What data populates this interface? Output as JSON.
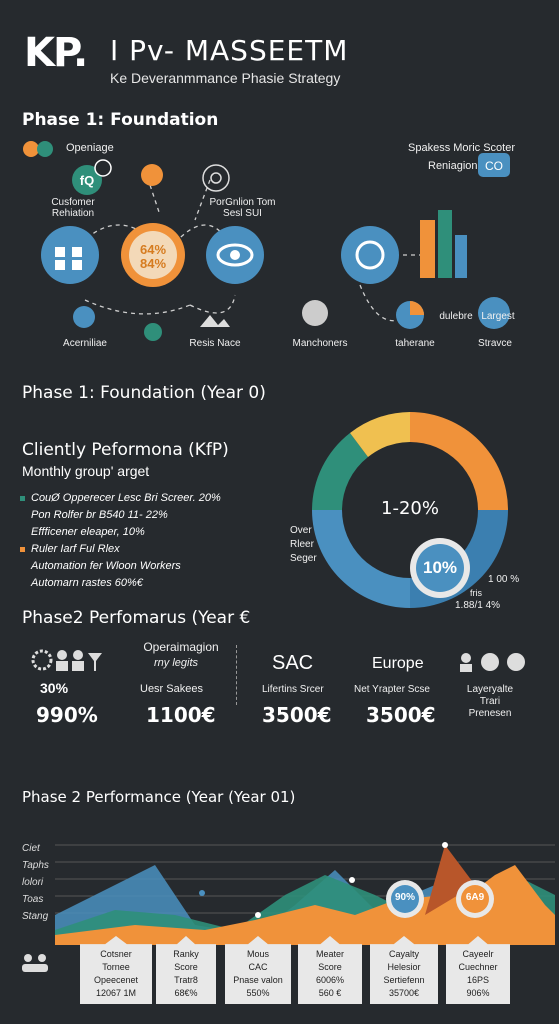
{
  "header": {
    "logo": "KP.",
    "title": "I Pv- MASSEETM",
    "subtitle": "Ke Deveranmmance Phasie Strategy"
  },
  "phase1": {
    "heading": "Phase 1: Foundation",
    "labels": {
      "openimage": "Openiage",
      "customer": "Cusfomer Rehiation",
      "portion": "PorGnlion Tom Sesl SUI",
      "ring_top": "64%",
      "ring_bottom": "84%",
      "accent": "Acerniliae",
      "rests": "Resis Nace",
      "spakess": "Spakess Moric Scoter",
      "reniagion": "Reniagion",
      "manchoners": "Manchoners",
      "taherane": "taherane",
      "dulebre": "dulebre",
      "largest": "Largest",
      "stravce": "Stravce"
    }
  },
  "phase1b": {
    "heading": "Phase 1: Foundation (Year 0)",
    "kpi_title": "Cliently Peformona (KfP)",
    "kpi_sub": "Monthly group' arget",
    "bullets": [
      "CouØ Opperecer Lesc Bri Screer. 20%",
      "Pon Rolfer br B540 11- 22%",
      "Effficener eleaper, 10%",
      "Ruler Iarf Ful Rlex",
      "Automation fer Wloon Workers",
      "Automarn rastes 60%€"
    ],
    "donut_center": "1-20%",
    "donut_badge": "10%",
    "left_note": "Over Rleer Seger",
    "right_note_1": "1 00 %",
    "right_note_2": "fris",
    "right_note_3": "1.88/1 4%"
  },
  "phase2": {
    "heading": "Phase2 Perfomarus (Year €",
    "operations": "Operaimagion",
    "my_leglts": "rny legits",
    "sac": "SAC",
    "europe": "Europe",
    "pct": "30%",
    "pct_big": "990%",
    "user_sakees": "Uesr Sakees",
    "v1": "1100€",
    "lifetime": "Lifertins Srcer",
    "v2": "3500€",
    "net": "Net Yrapter Scse",
    "v3": "3500€",
    "layer": "Layeryalte Trari Prenesen"
  },
  "phase2b": {
    "heading": "Phase 2 Performance (Year (Year 01)",
    "ylabels": [
      "Ciet",
      "Taphs",
      "lolori",
      "Toas",
      "Stang"
    ],
    "badge1": "90%",
    "badge2": "6A9",
    "cards": [
      {
        "line1": "Cotsner",
        "line2": "Tornee",
        "line3": "Opeecenet",
        "line4": "12067 1M"
      },
      {
        "line1": "Ranky",
        "line2": "Score",
        "line3": "Tratr8",
        "line4": "68€%"
      },
      {
        "line1": "Mous",
        "line2": "CAC",
        "line3": "Pnase valon",
        "line4": "550%"
      },
      {
        "line1": "Meater",
        "line2": "Score",
        "line3": "6006%",
        "line4": "560 €"
      },
      {
        "line1": "Cayalty",
        "line2": "Helesior",
        "line3": "Sertiefenn",
        "line4": "35700€"
      },
      {
        "line1": "Cayeelr",
        "line2": "Cuechner",
        "line3": "16PS",
        "line4": "906%"
      }
    ]
  },
  "colors": {
    "bg": "#262a2e",
    "blue": "#4a90c0",
    "orange": "#f0923a",
    "teal": "#2f8f7a",
    "yellow": "#f0c050",
    "light": "#e8e8e8"
  }
}
